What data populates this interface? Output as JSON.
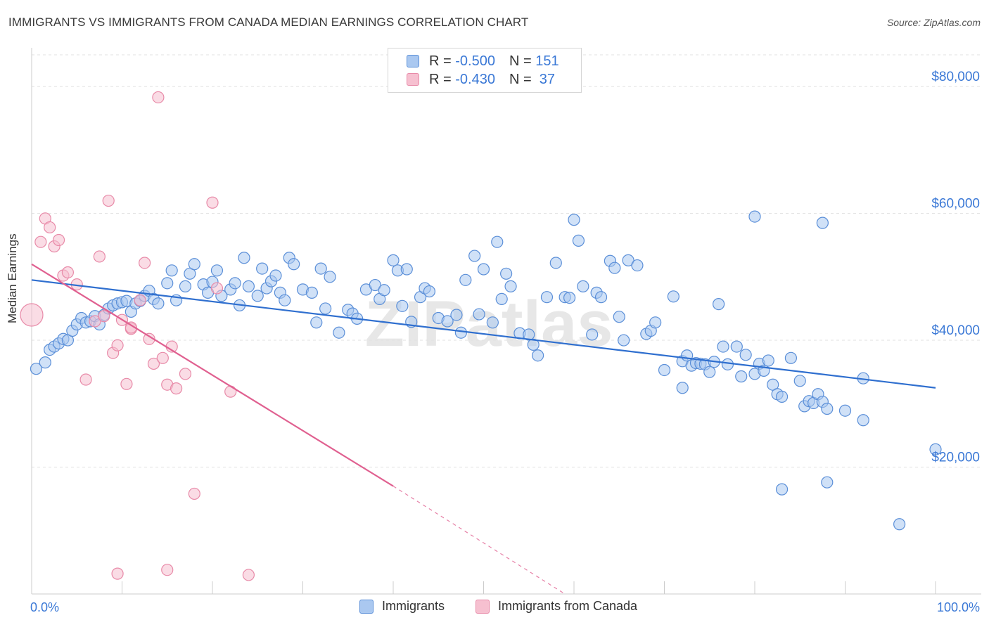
{
  "title": "IMMIGRANTS VS IMMIGRANTS FROM CANADA MEDIAN EARNINGS CORRELATION CHART",
  "source": "Source: ZipAtlas.com",
  "watermark": "ZIPatlas",
  "legend_stats": [
    {
      "r_label": "R =",
      "r_value": "-0.500",
      "n_label": "N =",
      "n_value": "151"
    },
    {
      "r_label": "R =",
      "r_value": "-0.430",
      "n_label": "N =",
      "n_value": "37"
    }
  ],
  "colors": {
    "immigrants_fill": "#aac8f0",
    "immigrants_stroke": "#5b8fd8",
    "immigrants_line": "#2f6fcf",
    "canada_fill": "#f6c0d0",
    "canada_stroke": "#e88aa8",
    "canada_line": "#e06090",
    "value_text": "#3a78d6",
    "grid": "#e0e0e0"
  },
  "chart_data": {
    "type": "scatter",
    "title": "IMMIGRANTS VS IMMIGRANTS FROM CANADA MEDIAN EARNINGS CORRELATION CHART",
    "xlabel": "",
    "ylabel": "Median Earnings",
    "xlim": [
      0,
      100
    ],
    "ylim": [
      0,
      85000
    ],
    "x_tick_labels": [
      "0.0%",
      "100.0%"
    ],
    "y_ticks": [
      20000,
      40000,
      60000,
      80000
    ],
    "y_tick_labels": [
      "$20,000",
      "$40,000",
      "$60,000",
      "$80,000"
    ],
    "grid": true,
    "legend_position": "bottom",
    "series": [
      {
        "name": "Immigrants",
        "color": "#5b8fd8",
        "trend": {
          "x": [
            0,
            100
          ],
          "y": [
            49500,
            32500
          ]
        },
        "points": [
          [
            0.5,
            35500
          ],
          [
            1.5,
            36500
          ],
          [
            2,
            38500
          ],
          [
            2.5,
            39000
          ],
          [
            3,
            39500
          ],
          [
            3.5,
            40200
          ],
          [
            4,
            40000
          ],
          [
            4.5,
            41500
          ],
          [
            5,
            42500
          ],
          [
            5.5,
            43500
          ],
          [
            6,
            42800
          ],
          [
            6.5,
            43000
          ],
          [
            7,
            43800
          ],
          [
            7.5,
            42500
          ],
          [
            8,
            44000
          ],
          [
            8.5,
            45000
          ],
          [
            9,
            45500
          ],
          [
            9.5,
            45800
          ],
          [
            10,
            46000
          ],
          [
            10.5,
            46200
          ],
          [
            11,
            44500
          ],
          [
            11.5,
            45800
          ],
          [
            12,
            46200
          ],
          [
            12.5,
            47000
          ],
          [
            13,
            47800
          ],
          [
            13.5,
            46500
          ],
          [
            14,
            45800
          ],
          [
            15,
            49000
          ],
          [
            15.5,
            51000
          ],
          [
            16,
            46300
          ],
          [
            17,
            48500
          ],
          [
            17.5,
            50500
          ],
          [
            18,
            52000
          ],
          [
            19,
            48800
          ],
          [
            19.5,
            47500
          ],
          [
            20,
            49200
          ],
          [
            20.5,
            51000
          ],
          [
            21,
            47000
          ],
          [
            22,
            48000
          ],
          [
            22.5,
            49000
          ],
          [
            23,
            45500
          ],
          [
            23.5,
            53000
          ],
          [
            24,
            48500
          ],
          [
            25,
            47000
          ],
          [
            25.5,
            51300
          ],
          [
            26,
            48200
          ],
          [
            26.5,
            49300
          ],
          [
            27,
            50200
          ],
          [
            27.5,
            47500
          ],
          [
            28,
            46300
          ],
          [
            28.5,
            53000
          ],
          [
            29,
            52000
          ],
          [
            30,
            48000
          ],
          [
            31,
            47500
          ],
          [
            31.5,
            42800
          ],
          [
            32,
            51300
          ],
          [
            32.5,
            45000
          ],
          [
            33,
            50000
          ],
          [
            34,
            41200
          ],
          [
            35,
            44800
          ],
          [
            35.5,
            44200
          ],
          [
            36,
            43400
          ],
          [
            37,
            48000
          ],
          [
            38,
            48700
          ],
          [
            38.5,
            46500
          ],
          [
            39,
            47900
          ],
          [
            40,
            52600
          ],
          [
            40.5,
            51000
          ],
          [
            41,
            45400
          ],
          [
            41.5,
            51200
          ],
          [
            42,
            42900
          ],
          [
            43,
            46800
          ],
          [
            43.5,
            48200
          ],
          [
            44,
            47700
          ],
          [
            45,
            43500
          ],
          [
            46,
            43000
          ],
          [
            47,
            44000
          ],
          [
            47.5,
            41200
          ],
          [
            48,
            49500
          ],
          [
            49,
            53300
          ],
          [
            49.5,
            44100
          ],
          [
            50,
            51200
          ],
          [
            51,
            42800
          ],
          [
            51.5,
            55500
          ],
          [
            52,
            46500
          ],
          [
            52.5,
            50500
          ],
          [
            53,
            48500
          ],
          [
            54,
            41100
          ],
          [
            55,
            40900
          ],
          [
            55.5,
            39300
          ],
          [
            56,
            37600
          ],
          [
            57,
            46800
          ],
          [
            58,
            52200
          ],
          [
            59,
            46800
          ],
          [
            59.5,
            46700
          ],
          [
            60,
            59000
          ],
          [
            60.5,
            55700
          ],
          [
            61,
            48500
          ],
          [
            62,
            40900
          ],
          [
            62.5,
            47500
          ],
          [
            63,
            46800
          ],
          [
            64,
            52500
          ],
          [
            64.5,
            51400
          ],
          [
            65,
            43700
          ],
          [
            65.5,
            40000
          ],
          [
            66,
            52600
          ],
          [
            67,
            51800
          ],
          [
            68,
            41000
          ],
          [
            68.5,
            41500
          ],
          [
            69,
            42800
          ],
          [
            70,
            35300
          ],
          [
            71,
            46900
          ],
          [
            72,
            36700
          ],
          [
            72.5,
            37600
          ],
          [
            73,
            36000
          ],
          [
            73.5,
            36400
          ],
          [
            74,
            36300
          ],
          [
            74.5,
            36200
          ],
          [
            75,
            35000
          ],
          [
            75.5,
            36600
          ],
          [
            76,
            45700
          ],
          [
            76.5,
            39000
          ],
          [
            77,
            36200
          ],
          [
            78,
            39000
          ],
          [
            78.5,
            34300
          ],
          [
            79,
            37700
          ],
          [
            80,
            34700
          ],
          [
            80.5,
            36300
          ],
          [
            81,
            35200
          ],
          [
            81.5,
            36800
          ],
          [
            82,
            33000
          ],
          [
            82.5,
            31500
          ],
          [
            83,
            31100
          ],
          [
            84,
            37200
          ],
          [
            85,
            33600
          ],
          [
            85.5,
            29600
          ],
          [
            86,
            30400
          ],
          [
            86.5,
            30100
          ],
          [
            87,
            31500
          ],
          [
            87.5,
            30300
          ],
          [
            88,
            29200
          ],
          [
            90,
            28900
          ],
          [
            92,
            27400
          ],
          [
            87.5,
            58500
          ],
          [
            80,
            59500
          ],
          [
            72,
            32500
          ],
          [
            83,
            16500
          ],
          [
            88,
            17600
          ],
          [
            96,
            11000
          ],
          [
            100,
            22800
          ],
          [
            92,
            34000
          ]
        ]
      },
      {
        "name": "Immigrants from Canada",
        "color": "#e88aa8",
        "trend": {
          "x": [
            0,
            40
          ],
          "y": [
            52000,
            17000
          ]
        },
        "trend_dashed_to": {
          "x": 59,
          "y": 0
        },
        "points": [
          [
            0,
            44000
          ],
          [
            1,
            55500
          ],
          [
            1.5,
            59200
          ],
          [
            2,
            57800
          ],
          [
            2.5,
            54800
          ],
          [
            3,
            55800
          ],
          [
            3.5,
            50200
          ],
          [
            4,
            50700
          ],
          [
            5,
            48800
          ],
          [
            6,
            33800
          ],
          [
            7,
            43000
          ],
          [
            7.5,
            53200
          ],
          [
            8,
            43800
          ],
          [
            8.5,
            62000
          ],
          [
            9,
            38000
          ],
          [
            9.5,
            39200
          ],
          [
            10,
            43200
          ],
          [
            10.5,
            33100
          ],
          [
            11,
            41800
          ],
          [
            12,
            46300
          ],
          [
            12.5,
            52200
          ],
          [
            13,
            40200
          ],
          [
            13.5,
            36300
          ],
          [
            14,
            78300
          ],
          [
            14.5,
            37200
          ],
          [
            15,
            33000
          ],
          [
            15.5,
            39000
          ],
          [
            16,
            32400
          ],
          [
            17,
            34700
          ],
          [
            18,
            15800
          ],
          [
            20,
            61700
          ],
          [
            20.5,
            48200
          ],
          [
            22,
            31900
          ],
          [
            24,
            3000
          ],
          [
            9.5,
            3200
          ],
          [
            15,
            3800
          ],
          [
            11,
            42000
          ]
        ]
      }
    ]
  }
}
